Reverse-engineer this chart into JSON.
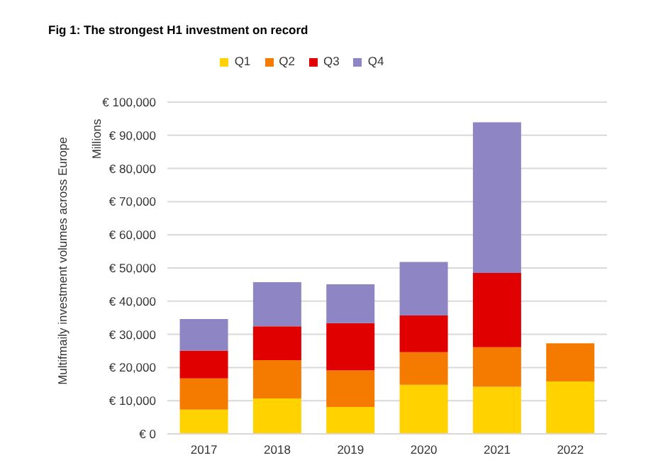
{
  "chart_data": {
    "type": "bar",
    "title": "Fig 1: The strongest H1 investment on record",
    "ylabel": "Multifmaily investment volumes across Europe",
    "annotations": [
      "Millions"
    ],
    "categories": [
      "2017",
      "2018",
      "2019",
      "2020",
      "2021",
      "2022"
    ],
    "series": [
      {
        "name": "Q1",
        "color": "#ffd200",
        "values": [
          7300,
          10700,
          8100,
          14800,
          14200,
          15800
        ]
      },
      {
        "name": "Q2",
        "color": "#f47b00",
        "values": [
          9400,
          11500,
          11000,
          9800,
          11900,
          11500
        ]
      },
      {
        "name": "Q3",
        "color": "#e00000",
        "values": [
          8400,
          10200,
          14300,
          11100,
          22400,
          null
        ]
      },
      {
        "name": "Q4",
        "color": "#8e86c4",
        "values": [
          9500,
          13300,
          11700,
          16100,
          45400,
          null
        ]
      }
    ],
    "stacked": true,
    "ylim": [
      0,
      100000
    ],
    "yticks": [
      {
        "value": 0,
        "label": "€ 0"
      },
      {
        "value": 10000,
        "label": "€ 10,000"
      },
      {
        "value": 20000,
        "label": "€ 20,000"
      },
      {
        "value": 30000,
        "label": "€ 30,000"
      },
      {
        "value": 40000,
        "label": "€ 40,000"
      },
      {
        "value": 50000,
        "label": "€ 50,000"
      },
      {
        "value": 60000,
        "label": "€ 60,000"
      },
      {
        "value": 70000,
        "label": "€ 70,000"
      },
      {
        "value": 80000,
        "label": "€ 80,000"
      },
      {
        "value": 90000,
        "label": "€ 90,000"
      },
      {
        "value": 100000,
        "label": "€ 100,000"
      }
    ],
    "grid": "y",
    "legend": "top"
  }
}
